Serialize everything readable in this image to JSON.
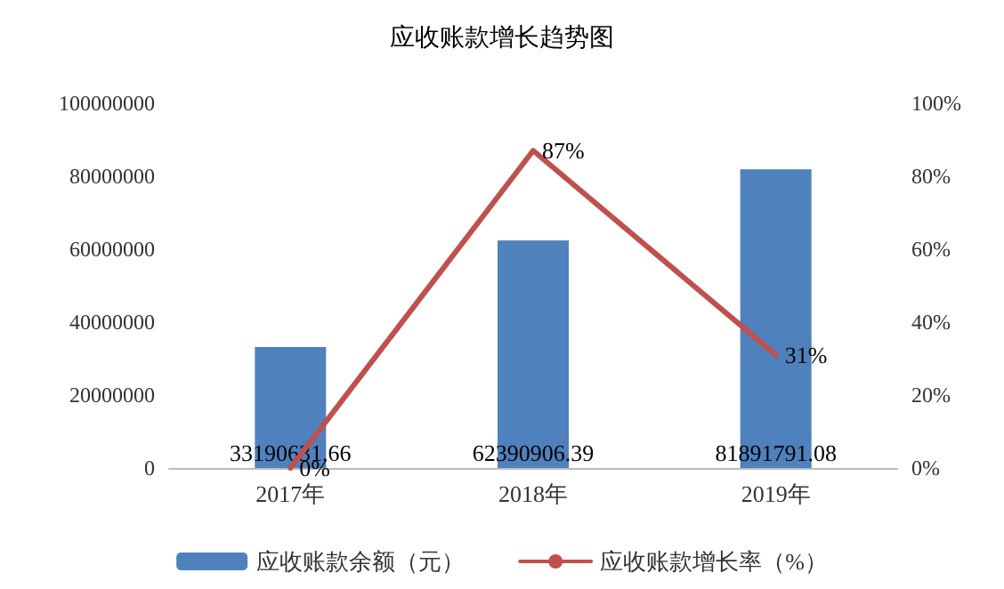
{
  "chart_data": {
    "type": "bar",
    "title": "应收账款增长趋势图",
    "categories": [
      "2017年",
      "2018年",
      "2019年"
    ],
    "series": [
      {
        "name": "应收账款余额（元）",
        "color": "#4f81bd",
        "values": [
          33190631.66,
          62390906.39,
          81891791.08
        ],
        "value_labels": [
          "33190631.66",
          "62390906.39",
          "81891791.08"
        ]
      },
      {
        "name": "应收账款增长率（%）",
        "type": "line",
        "axis": "y2",
        "color": "#c0504d",
        "values": [
          0,
          87,
          31
        ],
        "value_labels": [
          "0%",
          "87%",
          "31%"
        ]
      }
    ],
    "ylim": [
      0,
      100000000
    ],
    "yticks": [
      0,
      20000000,
      40000000,
      60000000,
      80000000,
      100000000
    ],
    "y2lim": [
      0,
      100
    ],
    "y2ticks": [
      {
        "value": 0,
        "label": "0%"
      },
      {
        "value": 20,
        "label": "20%"
      },
      {
        "value": 40,
        "label": "40%"
      },
      {
        "value": 60,
        "label": "60%"
      },
      {
        "value": 80,
        "label": "80%"
      },
      {
        "value": 100,
        "label": "100%"
      }
    ],
    "grid": false,
    "legend": "bottom",
    "marker": "none",
    "line_style": "solid"
  }
}
